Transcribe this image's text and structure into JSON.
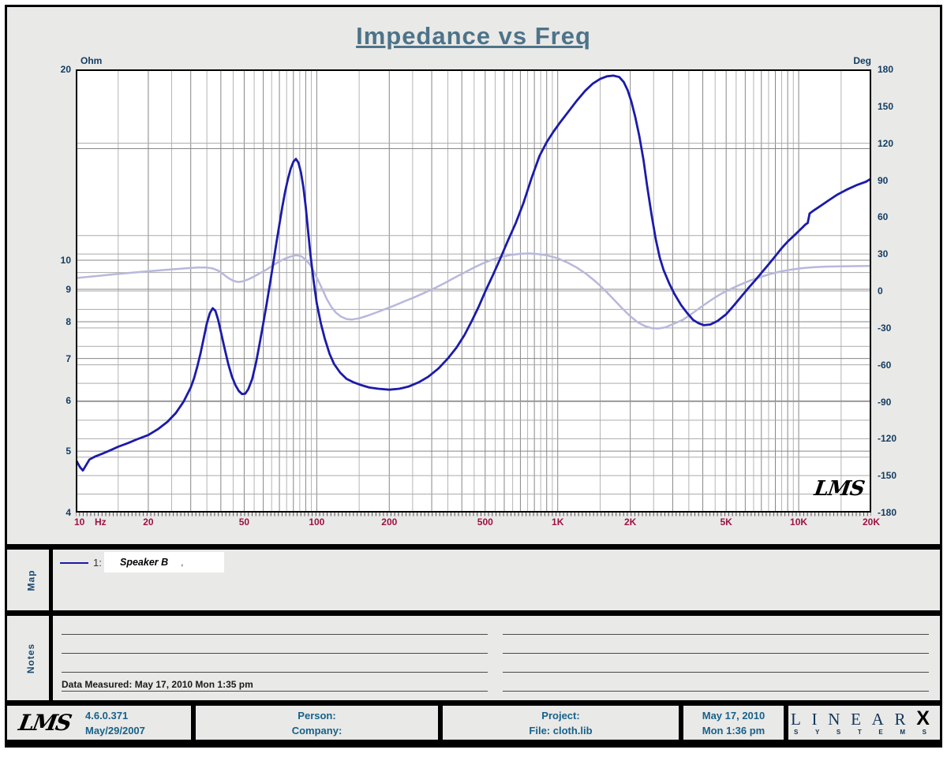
{
  "title": "Impedance vs Freq",
  "watermark": "LMS",
  "colors": {
    "title": "#4d7389",
    "axis_label": "#133d63",
    "freq_label": "#9c1144",
    "footer_text": "#17618a",
    "side_label": "#1a4a70",
    "impedance_curve": "#1b1baa",
    "phase_curve": "#b8b8dc",
    "grid_major": "#878787",
    "grid_minor": "#b5b5b5",
    "logo_navy": "#10355c"
  },
  "chart_data": {
    "type": "line",
    "title": "Impedance vs Freq",
    "x_axis": {
      "scale": "log",
      "min": 10,
      "max": 20000,
      "unit": "Hz",
      "ticks": [
        [
          10,
          "10"
        ],
        [
          20,
          "20"
        ],
        [
          50,
          "50"
        ],
        [
          100,
          "100"
        ],
        [
          200,
          "200"
        ],
        [
          500,
          "500"
        ],
        [
          1000,
          "1K"
        ],
        [
          2000,
          "2K"
        ],
        [
          5000,
          "5K"
        ],
        [
          10000,
          "10K"
        ],
        [
          20000,
          "20K"
        ]
      ]
    },
    "y_left": {
      "label": "Ohm",
      "scale": "log",
      "min": 4,
      "max": 20,
      "ticks": [
        20,
        10,
        9,
        8,
        7,
        6,
        5,
        4
      ]
    },
    "y_right": {
      "label": "Deg",
      "scale": "linear",
      "min": -180,
      "max": 180,
      "tick_step": 30
    },
    "grid": {
      "h_impedance_lines": [
        15,
        10,
        9,
        8,
        7,
        6,
        5
      ],
      "h_phase_lines": [
        120,
        45,
        30,
        15,
        0,
        -15,
        -30,
        -45,
        -60,
        -75,
        -90,
        -105,
        -120,
        -135,
        -150,
        -165
      ],
      "v_half_steps": true
    },
    "legend_position": "map-panel-below",
    "series": [
      {
        "name": "Speaker B impedance",
        "axis": "left",
        "unit": "Ohm",
        "color": "#1b1baa",
        "width": 2.8,
        "points": [
          [
            10,
            4.85
          ],
          [
            10.4,
            4.72
          ],
          [
            10.7,
            4.66
          ],
          [
            11,
            4.74
          ],
          [
            11.4,
            4.85
          ],
          [
            12,
            4.9
          ],
          [
            13,
            4.96
          ],
          [
            14,
            5.02
          ],
          [
            15,
            5.08
          ],
          [
            16.5,
            5.15
          ],
          [
            18,
            5.22
          ],
          [
            20,
            5.3
          ],
          [
            22,
            5.42
          ],
          [
            24,
            5.56
          ],
          [
            26,
            5.74
          ],
          [
            28,
            5.98
          ],
          [
            30,
            6.3
          ],
          [
            31,
            6.52
          ],
          [
            32,
            6.82
          ],
          [
            33,
            7.15
          ],
          [
            34,
            7.55
          ],
          [
            35,
            7.95
          ],
          [
            36,
            8.25
          ],
          [
            37,
            8.4
          ],
          [
            38,
            8.32
          ],
          [
            39,
            8.05
          ],
          [
            40,
            7.72
          ],
          [
            41.5,
            7.25
          ],
          [
            43,
            6.85
          ],
          [
            44.5,
            6.55
          ],
          [
            46,
            6.35
          ],
          [
            47.5,
            6.22
          ],
          [
            49,
            6.15
          ],
          [
            50.5,
            6.16
          ],
          [
            52,
            6.26
          ],
          [
            54,
            6.5
          ],
          [
            56,
            6.9
          ],
          [
            58,
            7.4
          ],
          [
            60,
            7.95
          ],
          [
            62,
            8.55
          ],
          [
            64,
            9.2
          ],
          [
            66,
            9.9
          ],
          [
            68,
            10.65
          ],
          [
            70,
            11.4
          ],
          [
            72,
            12.15
          ],
          [
            74,
            12.85
          ],
          [
            76,
            13.45
          ],
          [
            78,
            13.95
          ],
          [
            80,
            14.3
          ],
          [
            82,
            14.45
          ],
          [
            84,
            14.25
          ],
          [
            86,
            13.75
          ],
          [
            88,
            13.05
          ],
          [
            90,
            12.15
          ],
          [
            92,
            11.15
          ],
          [
            94,
            10.25
          ],
          [
            97,
            9.3
          ],
          [
            100,
            8.55
          ],
          [
            104,
            7.95
          ],
          [
            108,
            7.52
          ],
          [
            113,
            7.12
          ],
          [
            118,
            6.86
          ],
          [
            125,
            6.65
          ],
          [
            133,
            6.5
          ],
          [
            142,
            6.42
          ],
          [
            152,
            6.36
          ],
          [
            165,
            6.3
          ],
          [
            180,
            6.27
          ],
          [
            200,
            6.25
          ],
          [
            220,
            6.27
          ],
          [
            240,
            6.32
          ],
          [
            265,
            6.42
          ],
          [
            290,
            6.55
          ],
          [
            320,
            6.75
          ],
          [
            350,
            7.0
          ],
          [
            380,
            7.28
          ],
          [
            410,
            7.62
          ],
          [
            440,
            8.02
          ],
          [
            470,
            8.45
          ],
          [
            500,
            8.92
          ],
          [
            540,
            9.5
          ],
          [
            580,
            10.1
          ],
          [
            620,
            10.72
          ],
          [
            670,
            11.45
          ],
          [
            720,
            12.3
          ],
          [
            780,
            13.5
          ],
          [
            840,
            14.6
          ],
          [
            900,
            15.35
          ],
          [
            960,
            15.95
          ],
          [
            1030,
            16.55
          ],
          [
            1100,
            17.1
          ],
          [
            1200,
            17.85
          ],
          [
            1300,
            18.5
          ],
          [
            1400,
            19.0
          ],
          [
            1500,
            19.32
          ],
          [
            1600,
            19.5
          ],
          [
            1700,
            19.55
          ],
          [
            1800,
            19.45
          ],
          [
            1880,
            19.1
          ],
          [
            1950,
            18.55
          ],
          [
            2020,
            17.8
          ],
          [
            2100,
            16.8
          ],
          [
            2180,
            15.7
          ],
          [
            2270,
            14.4
          ],
          [
            2350,
            13.1
          ],
          [
            2450,
            11.8
          ],
          [
            2550,
            10.8
          ],
          [
            2650,
            10.1
          ],
          [
            2750,
            9.65
          ],
          [
            2900,
            9.2
          ],
          [
            3050,
            8.85
          ],
          [
            3250,
            8.5
          ],
          [
            3450,
            8.25
          ],
          [
            3650,
            8.05
          ],
          [
            3850,
            7.95
          ],
          [
            4050,
            7.9
          ],
          [
            4300,
            7.92
          ],
          [
            4600,
            8.02
          ],
          [
            5000,
            8.22
          ],
          [
            5400,
            8.5
          ],
          [
            5800,
            8.78
          ],
          [
            6200,
            9.05
          ],
          [
            6600,
            9.3
          ],
          [
            7000,
            9.55
          ],
          [
            7500,
            9.85
          ],
          [
            8000,
            10.15
          ],
          [
            8500,
            10.45
          ],
          [
            9000,
            10.7
          ],
          [
            9600,
            10.95
          ],
          [
            10200,
            11.2
          ],
          [
            10700,
            11.4
          ],
          [
            10900,
            11.45
          ],
          [
            11100,
            11.85
          ],
          [
            11600,
            12.0
          ],
          [
            12400,
            12.2
          ],
          [
            13400,
            12.45
          ],
          [
            14500,
            12.7
          ],
          [
            16000,
            12.95
          ],
          [
            17500,
            13.15
          ],
          [
            19000,
            13.3
          ],
          [
            20000,
            13.45
          ]
        ]
      },
      {
        "name": "Speaker B phase",
        "axis": "right",
        "unit": "Deg",
        "color": "#b8b8dc",
        "width": 2.5,
        "points": [
          [
            10,
            10.5
          ],
          [
            12,
            12
          ],
          [
            14,
            13.3
          ],
          [
            17,
            14.8
          ],
          [
            20,
            16
          ],
          [
            23,
            17
          ],
          [
            26,
            17.8
          ],
          [
            29,
            18.5
          ],
          [
            32,
            19
          ],
          [
            35,
            19
          ],
          [
            37,
            18.3
          ],
          [
            39,
            16.5
          ],
          [
            41,
            13.5
          ],
          [
            43,
            10.5
          ],
          [
            45,
            8.3
          ],
          [
            47,
            7.3
          ],
          [
            49,
            7.7
          ],
          [
            52,
            9.4
          ],
          [
            55,
            11.8
          ],
          [
            58,
            14.3
          ],
          [
            62,
            17.5
          ],
          [
            66,
            21
          ],
          [
            70,
            24
          ],
          [
            74,
            26.3
          ],
          [
            78,
            28
          ],
          [
            82,
            29
          ],
          [
            86,
            28.3
          ],
          [
            90,
            25.5
          ],
          [
            94,
            21
          ],
          [
            98,
            14.5
          ],
          [
            102,
            7.5
          ],
          [
            106,
            0.5
          ],
          [
            110,
            -6.5
          ],
          [
            115,
            -13
          ],
          [
            120,
            -17.5
          ],
          [
            126,
            -20.8
          ],
          [
            133,
            -22.8
          ],
          [
            140,
            -23.2
          ],
          [
            150,
            -22.2
          ],
          [
            162,
            -20.2
          ],
          [
            176,
            -17.6
          ],
          [
            192,
            -14.8
          ],
          [
            210,
            -11.8
          ],
          [
            230,
            -8.6
          ],
          [
            255,
            -5
          ],
          [
            280,
            -1.5
          ],
          [
            310,
            2.5
          ],
          [
            340,
            6.5
          ],
          [
            375,
            11
          ],
          [
            410,
            15
          ],
          [
            450,
            19
          ],
          [
            490,
            22.5
          ],
          [
            530,
            25.2
          ],
          [
            580,
            27.6
          ],
          [
            640,
            29.3
          ],
          [
            700,
            30.2
          ],
          [
            760,
            30.5
          ],
          [
            830,
            30
          ],
          [
            900,
            29
          ],
          [
            1000,
            26.5
          ],
          [
            1100,
            23
          ],
          [
            1200,
            19
          ],
          [
            1320,
            13.5
          ],
          [
            1450,
            7
          ],
          [
            1580,
            0
          ],
          [
            1700,
            -6.5
          ],
          [
            1850,
            -14
          ],
          [
            2000,
            -20.5
          ],
          [
            2150,
            -25.5
          ],
          [
            2300,
            -28.5
          ],
          [
            2450,
            -30.2
          ],
          [
            2600,
            -30.5
          ],
          [
            2800,
            -29.5
          ],
          [
            3000,
            -27
          ],
          [
            3300,
            -23.5
          ],
          [
            3600,
            -18.5
          ],
          [
            4000,
            -12
          ],
          [
            4400,
            -6.5
          ],
          [
            4800,
            -2
          ],
          [
            5200,
            1.5
          ],
          [
            5700,
            5
          ],
          [
            6300,
            8.5
          ],
          [
            7000,
            11.5
          ],
          [
            7700,
            14
          ],
          [
            8500,
            16
          ],
          [
            9400,
            17.5
          ],
          [
            10300,
            18.5
          ],
          [
            11500,
            19.3
          ],
          [
            13000,
            19.8
          ],
          [
            15000,
            20
          ],
          [
            17000,
            20.2
          ],
          [
            20000,
            20.3
          ]
        ]
      }
    ]
  },
  "map": {
    "label": "Map",
    "legend": {
      "index": "1:",
      "name": "Speaker B",
      "suffix": ","
    }
  },
  "notes": {
    "label": "Notes",
    "data_measured": "Data Measured: May 17, 2010  Mon  1:35 pm"
  },
  "footer": {
    "logo": "LMS",
    "version": "4.6.0.371",
    "version_date": "May/29/2007",
    "person_label": "Person:",
    "company_label": "Company:",
    "project_label": "Project:",
    "file_label": "File: cloth.lib",
    "date": "May 17, 2010",
    "time": "Mon  1:36 pm",
    "brand": {
      "line1": "LINEAR",
      "x": "X",
      "line2": "SYSTEMS"
    }
  }
}
